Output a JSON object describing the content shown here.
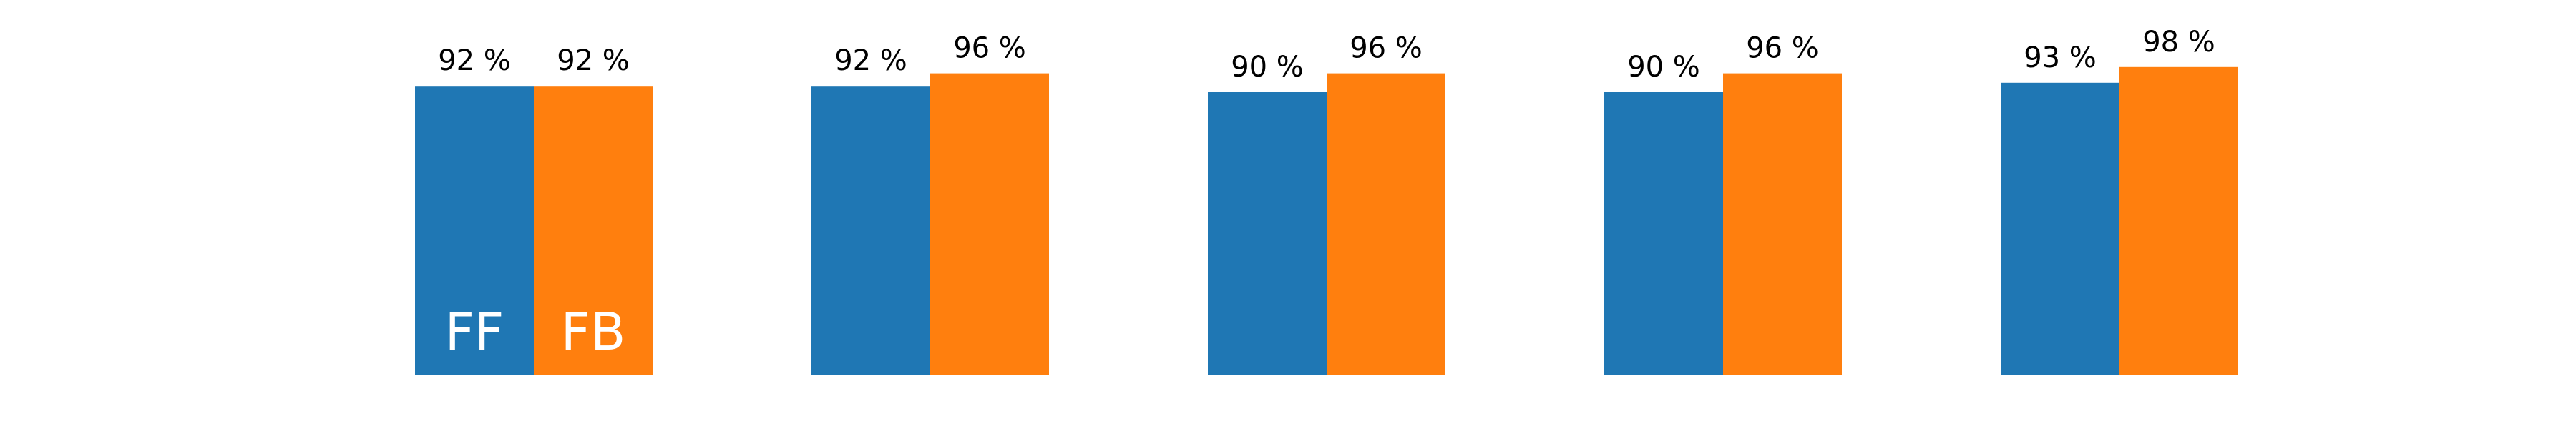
{
  "chart_data": {
    "type": "bar",
    "title": "",
    "xlabel": "",
    "ylabel": "",
    "ylim": [
      0,
      100
    ],
    "axes_visible": false,
    "grid": false,
    "legend": "none",
    "categories": [
      "",
      "",
      "",
      "",
      ""
    ],
    "series": [
      {
        "name": "FF",
        "color": "#1f77b4",
        "values": [
          92,
          92,
          90,
          90,
          93
        ],
        "labels": [
          "92 %",
          "92 %",
          "90 %",
          "90 %",
          "93 %"
        ]
      },
      {
        "name": "FB",
        "color": "#ff7f0e",
        "values": [
          92,
          96,
          96,
          96,
          98
        ],
        "labels": [
          "92 %",
          "96 %",
          "96 %",
          "96 %",
          "98 %"
        ]
      }
    ]
  }
}
